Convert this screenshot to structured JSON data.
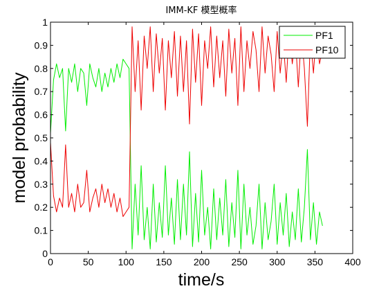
{
  "chart_data": {
    "type": "line",
    "title": "IMM-KF 模型概率",
    "xlabel": "time/s",
    "ylabel": "model probability",
    "xlim": [
      0,
      400
    ],
    "ylim": [
      0,
      1
    ],
    "xticks": [
      "0",
      "50",
      "100",
      "150",
      "200",
      "250",
      "300",
      "350",
      "400"
    ],
    "yticks": [
      "0",
      "0.1",
      "0.2",
      "0.3",
      "0.4",
      "0.5",
      "0.6",
      "0.7",
      "0.8",
      "0.9",
      "1"
    ],
    "grid": false,
    "legend_position": "top-right",
    "x": [
      0,
      4,
      8,
      12,
      16,
      20,
      24,
      28,
      32,
      36,
      40,
      44,
      48,
      52,
      56,
      60,
      64,
      68,
      72,
      76,
      80,
      84,
      88,
      92,
      96,
      100,
      104,
      108,
      112,
      116,
      120,
      124,
      128,
      132,
      136,
      140,
      144,
      148,
      152,
      156,
      160,
      164,
      168,
      172,
      176,
      180,
      184,
      188,
      192,
      196,
      200,
      204,
      208,
      212,
      216,
      220,
      224,
      228,
      232,
      236,
      240,
      244,
      248,
      252,
      256,
      260,
      264,
      268,
      272,
      276,
      280,
      284,
      288,
      292,
      296,
      300,
      304,
      308,
      312,
      316,
      320,
      324,
      328,
      332,
      336,
      340,
      344,
      348,
      352,
      356,
      360
    ],
    "series": [
      {
        "name": "PF1",
        "color": "#00ee00",
        "values": [
          0.52,
          0.75,
          0.82,
          0.76,
          0.8,
          0.53,
          0.8,
          0.74,
          0.82,
          0.7,
          0.8,
          0.78,
          0.64,
          0.82,
          0.76,
          0.72,
          0.8,
          0.7,
          0.78,
          0.72,
          0.8,
          0.74,
          0.82,
          0.76,
          0.84,
          0.82,
          0.8,
          0.02,
          0.3,
          0.08,
          0.38,
          0.06,
          0.2,
          0.02,
          0.3,
          0.05,
          0.22,
          0.07,
          0.38,
          0.08,
          0.24,
          0.04,
          0.32,
          0.06,
          0.3,
          0.08,
          0.44,
          0.03,
          0.26,
          0.05,
          0.36,
          0.08,
          0.2,
          0.02,
          0.28,
          0.06,
          0.24,
          0.08,
          0.32,
          0.03,
          0.22,
          0.07,
          0.36,
          0.02,
          0.3,
          0.08,
          0.2,
          0.04,
          0.12,
          0.3,
          0.02,
          0.22,
          0.06,
          0.14,
          0.3,
          0.04,
          0.22,
          0.08,
          0.26,
          0.03,
          0.18,
          0.06,
          0.28,
          0.05,
          0.2,
          0.45,
          0.06,
          0.22,
          0.04,
          0.18,
          0.12
        ]
      },
      {
        "name": "PF10",
        "color": "#ee0000",
        "values": [
          0.48,
          0.25,
          0.18,
          0.24,
          0.2,
          0.47,
          0.2,
          0.26,
          0.18,
          0.3,
          0.2,
          0.22,
          0.36,
          0.18,
          0.24,
          0.28,
          0.2,
          0.3,
          0.22,
          0.28,
          0.2,
          0.26,
          0.18,
          0.24,
          0.16,
          0.18,
          0.2,
          0.98,
          0.7,
          0.92,
          0.62,
          0.94,
          0.8,
          0.98,
          0.7,
          0.95,
          0.78,
          0.93,
          0.62,
          0.92,
          0.76,
          0.96,
          0.68,
          0.94,
          0.7,
          0.92,
          0.56,
          0.97,
          0.74,
          0.95,
          0.64,
          0.92,
          0.8,
          0.98,
          0.72,
          0.94,
          0.76,
          0.92,
          0.68,
          0.97,
          0.78,
          0.93,
          0.64,
          0.98,
          0.7,
          0.92,
          0.8,
          0.96,
          0.88,
          0.7,
          0.98,
          0.78,
          0.94,
          0.86,
          0.7,
          0.96,
          0.78,
          0.92,
          0.74,
          0.97,
          0.82,
          0.94,
          0.72,
          0.95,
          0.8,
          0.55,
          0.94,
          0.78,
          0.96,
          0.82,
          0.88
        ]
      }
    ]
  }
}
